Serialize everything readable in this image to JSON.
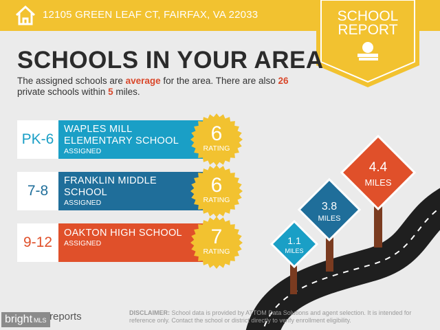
{
  "header": {
    "address": "12105 GREEN LEAF CT, FAIRFAX, VA 22033"
  },
  "badge": {
    "line1": "SCHOOL",
    "line2": "REPORT"
  },
  "title": "SCHOOLS IN YOUR AREA",
  "intro": {
    "part1": "The assigned schools are ",
    "rating_word": "average",
    "part2": " for the area. There are also ",
    "private_count": 26,
    "part3": " private schools within ",
    "radius": 5,
    "part4": " miles."
  },
  "schools": [
    {
      "grades": "PK-6",
      "name": "WAPLES MILL ELEMENTARY SCHOOL",
      "status": "ASSIGNED",
      "rating": 6,
      "rating_label": "RATING"
    },
    {
      "grades": "7-8",
      "name": "FRANKLIN MIDDLE SCHOOL",
      "status": "ASSIGNED",
      "rating": 6,
      "rating_label": "RATING"
    },
    {
      "grades": "9-12",
      "name": "OAKTON HIGH SCHOOL",
      "status": "ASSIGNED",
      "rating": 7,
      "rating_label": "RATING"
    }
  ],
  "distances": [
    {
      "value": 1.1,
      "unit": "MILES"
    },
    {
      "value": 3.8,
      "unit": "MILES"
    },
    {
      "value": 4.4,
      "unit": "MILES"
    }
  ],
  "footer": {
    "logo": "reports",
    "watermark": "bright",
    "watermark_suffix": "MLS",
    "disclaimer_label": "DISCLAIMER:",
    "disclaimer": "School data is provided by ATTOM Data Solutions and agent selection. It is intended for reference only. Contact the school or district directly to verify enrollment eligibility."
  }
}
